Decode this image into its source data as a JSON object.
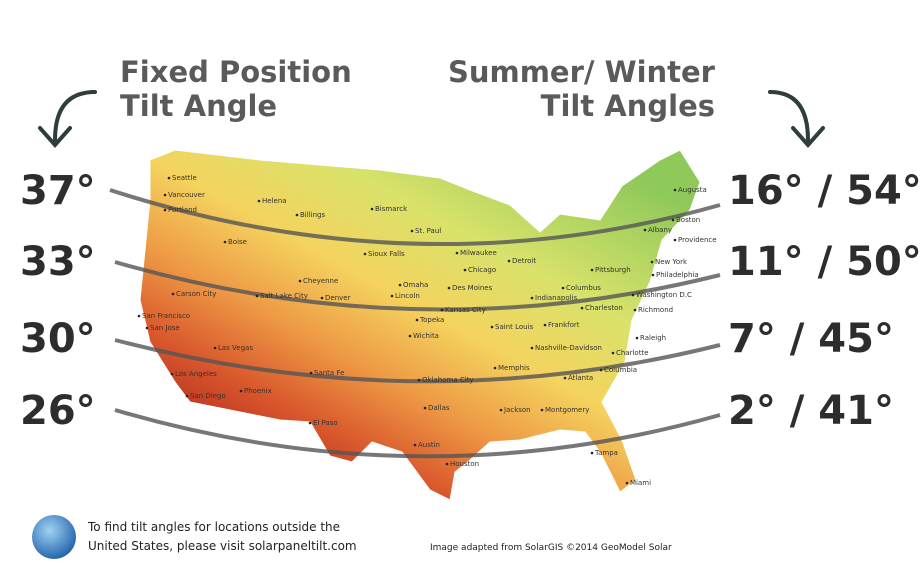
{
  "header": {
    "left_title": [
      "Fixed Position",
      "Tilt Angle"
    ],
    "right_title": [
      "Summer/ Winter",
      "Tilt Angles"
    ]
  },
  "fixed_angles": [
    "37°",
    "33°",
    "30°",
    "26°"
  ],
  "seasonal_angles": [
    "16° / 54°",
    "11° / 50°",
    "7° / 45°",
    "2° / 41°"
  ],
  "cities": [
    "Seattle",
    "Vancouver",
    "Portland",
    "Helena",
    "Billings",
    "Bismarck",
    "Boise",
    "St. Paul",
    "Sioux Falls",
    "Milwaukee",
    "Detroit",
    "Chicago",
    "Cheyenne",
    "Omaha",
    "Lincoln",
    "Des Moines",
    "Carson City",
    "Salt Lake City",
    "Denver",
    "San Francisco",
    "San Jose",
    "Topeka",
    "Kansas City",
    "Saint Louis",
    "Indianapolis",
    "Columbus",
    "Frankfort",
    "Pittsburgh",
    "New York",
    "Philadelphia",
    "Washington D.C",
    "Richmond",
    "Charleston",
    "Boston",
    "Albany",
    "Providence",
    "Augusta",
    "Las Vegas",
    "Wichita",
    "Nashville-Davidson",
    "Raleigh",
    "Charlotte",
    "Los Angeles",
    "San Diego",
    "Phoenix",
    "Santa Fe",
    "Oklahoma City",
    "Memphis",
    "Atlanta",
    "Columbia",
    "Dallas",
    "Jackson",
    "Montgomery",
    "El Paso",
    "Austin",
    "Houston",
    "Tampa",
    "Miami"
  ],
  "footer": {
    "note": [
      "To find tilt angles for locations outside the",
      "United States, please visit solarpaneltilt.com"
    ],
    "credit": "Image adapted from SolarGIS ©2014 GeoModel Solar"
  }
}
